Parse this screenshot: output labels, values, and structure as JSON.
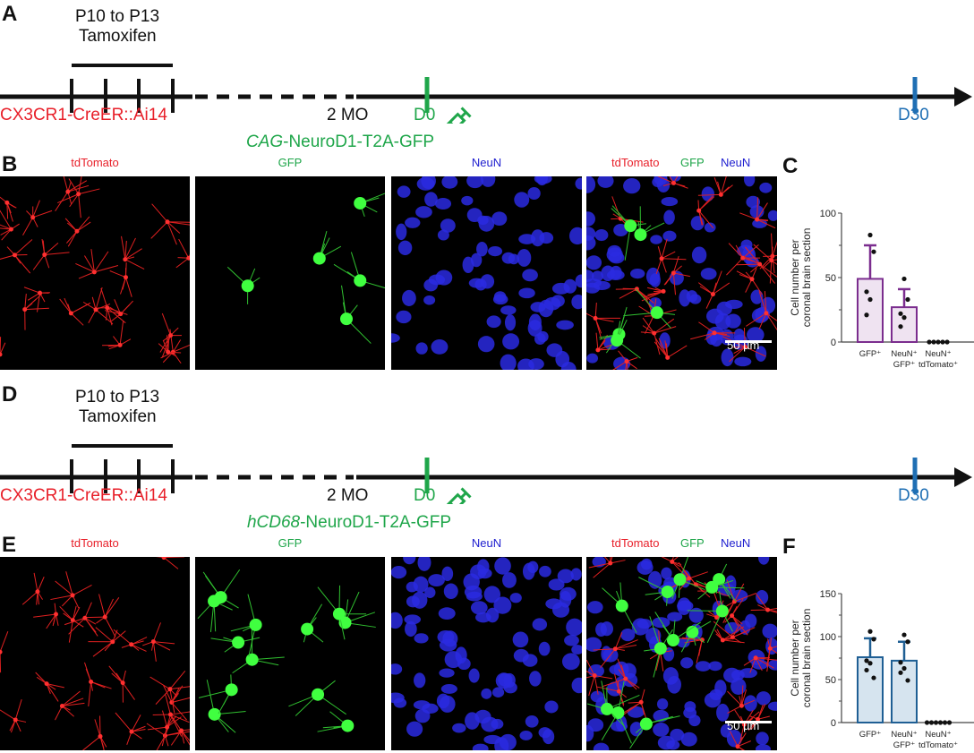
{
  "panels": {
    "A": {
      "letter": "A",
      "window": "P10 to P13",
      "drug": "Tamoxifen",
      "mouse": "CX3CR1-CreER::Ai14",
      "age": "2 MO",
      "d0": "D0",
      "virus_italic": "CAG",
      "virus_rest": "-NeuroD1-T2A-GFP",
      "d30": "D30"
    },
    "B": {
      "letter": "B",
      "channels": [
        "tdTomato",
        "GFP",
        "NeuN"
      ],
      "merge": [
        "tdTomato",
        "GFP",
        "NeuN"
      ],
      "scale": "50 µm"
    },
    "C": {
      "letter": "C"
    },
    "D": {
      "letter": "D",
      "window": "P10 to P13",
      "drug": "Tamoxifen",
      "mouse": "CX3CR1-CreER::Ai14",
      "age": "2 MO",
      "d0": "D0",
      "virus_italic": "hCD68",
      "virus_rest": "-NeuroD1-T2A-GFP",
      "d30": "D30"
    },
    "E": {
      "letter": "E",
      "channels": [
        "tdTomato",
        "GFP",
        "NeuN"
      ],
      "merge": [
        "tdTomato",
        "GFP",
        "NeuN"
      ],
      "scale": "50 µm"
    },
    "F": {
      "letter": "F"
    }
  },
  "colors": {
    "red": "#e8202a",
    "green": "#1fa64a",
    "blue": "#1f6fb4",
    "neun": "#2020d0",
    "purple": "#7b2d8e",
    "purple_fill": "#efe3f1",
    "blue_fill": "#d6e4ef",
    "steel": "#1f5f94"
  },
  "chart_data": [
    {
      "type": "bar",
      "panel": "C",
      "ylabel": "Cell number per coronal brain section",
      "ylim": [
        0,
        100
      ],
      "yticks": [
        0,
        50,
        100
      ],
      "categories": [
        [
          "GFP⁺"
        ],
        [
          "NeuN⁺",
          "GFP⁺"
        ],
        [
          "NeuN⁺",
          "tdTomato⁺"
        ]
      ],
      "values": [
        49,
        27,
        0
      ],
      "error_upper": [
        75,
        41,
        0
      ],
      "points": [
        [
          83,
          70,
          39,
          33,
          21
        ],
        [
          49,
          33,
          22,
          19,
          12
        ],
        [
          0,
          0,
          0,
          0,
          0
        ]
      ],
      "color": "#7b2d8e",
      "fill": "#efe3f1"
    },
    {
      "type": "bar",
      "panel": "F",
      "ylabel": "Cell number per coronal brain section",
      "ylim": [
        0,
        150
      ],
      "yticks": [
        0,
        50,
        100,
        150
      ],
      "categories": [
        [
          "GFP⁺"
        ],
        [
          "NeuN⁺",
          "GFP⁺"
        ],
        [
          "NeuN⁺",
          "tdTomato⁺"
        ]
      ],
      "values": [
        76,
        72,
        0
      ],
      "error_upper": [
        98,
        94,
        0
      ],
      "points": [
        [
          106,
          97,
          72,
          69,
          61,
          52
        ],
        [
          102,
          94,
          70,
          63,
          58,
          49
        ],
        [
          0,
          0,
          0,
          0,
          0,
          0
        ]
      ],
      "color": "#1f5f94",
      "fill": "#d6e4ef"
    }
  ]
}
